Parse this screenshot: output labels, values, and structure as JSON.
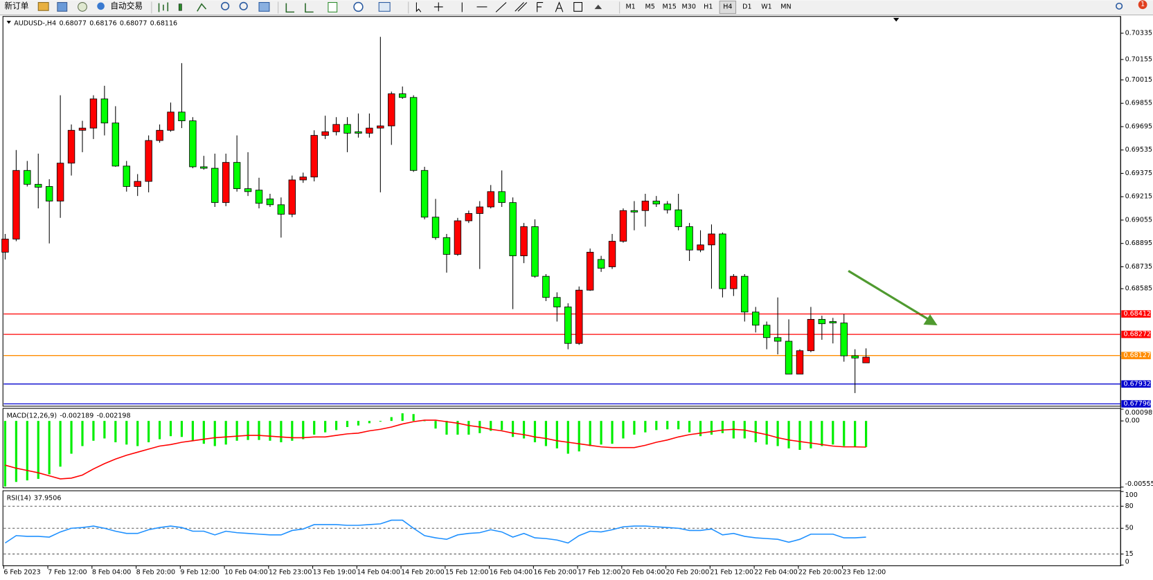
{
  "toolbar": {
    "new_order": "新订单",
    "auto_trading": "自动交易",
    "timeframes": [
      "M1",
      "M5",
      "M15",
      "M30",
      "H1",
      "H4",
      "D1",
      "W1",
      "MN"
    ],
    "active_timeframe": 5,
    "notifications": 1
  },
  "chart_data": [
    {
      "type": "candlestick",
      "symbol": "AUDUSD-,H4",
      "categories": [
        "6 Feb 2023",
        null,
        null,
        null,
        "7 Feb 12:00",
        null,
        null,
        null,
        "8 Feb 04:00",
        null,
        null,
        null,
        "8 Feb 20:00",
        null,
        null,
        null,
        "9 Feb 12:00",
        null,
        null,
        null,
        "10 Feb 04:00",
        null,
        null,
        null,
        "12 Feb 23:00",
        null,
        null,
        null,
        "13 Feb 19:00",
        null,
        null,
        null,
        "14 Feb 04:00",
        null,
        null,
        null,
        "14 Feb 20:00",
        null,
        null,
        null,
        "15 Feb 12:00",
        null,
        null,
        null,
        "16 Feb 04:00",
        null,
        null,
        null,
        "16 Feb 20:00",
        null,
        null,
        null,
        "17 Feb 12:00",
        null,
        null,
        null,
        "20 Feb 04:00",
        null,
        null,
        null,
        "20 Feb 20:00",
        null,
        null,
        null,
        "21 Feb 12:00",
        null,
        null,
        null,
        "22 Feb 04:00",
        null,
        null,
        null,
        "22 Feb 20:00",
        null,
        null,
        null,
        "23 Feb 12:00",
        null,
        null
      ],
      "open": [
        0.68835,
        0.68925,
        0.69395,
        0.693,
        0.69285,
        0.69185,
        0.69445,
        0.6967,
        0.69685,
        0.69885,
        0.6972,
        0.69425,
        0.69285,
        0.6932,
        0.696,
        0.6967,
        0.69795,
        0.69735,
        0.6942,
        0.6941,
        0.69175,
        0.6945,
        0.6927,
        0.6926,
        0.692,
        0.6916,
        0.69095,
        0.6933,
        0.6935,
        0.69635,
        0.6966,
        0.6971,
        0.6966,
        0.6965,
        0.69685,
        0.697,
        0.6992,
        0.69895,
        0.69395,
        0.69075,
        0.68935,
        0.6882,
        0.6905,
        0.691,
        0.69145,
        0.6925,
        0.69175,
        0.6881,
        0.6901,
        0.6867,
        0.68525,
        0.6846,
        0.6821,
        0.68575,
        0.68785,
        0.68735,
        0.6891,
        0.6912,
        0.6912,
        0.69185,
        0.69165,
        0.69125,
        0.6901,
        0.6885,
        0.68885,
        0.6896,
        0.68585,
        0.6867,
        0.68425,
        0.68335,
        0.6825,
        0.68225,
        0.68,
        0.6816,
        0.68375,
        0.6836,
        0.6835,
        0.68125,
        0.68077
      ],
      "high": [
        0.6896,
        0.69535,
        0.6946,
        0.6951,
        0.69335,
        0.6991,
        0.6971,
        0.69735,
        0.6991,
        0.69975,
        0.69835,
        0.6946,
        0.6937,
        0.69635,
        0.6971,
        0.6986,
        0.7013,
        0.6976,
        0.69495,
        0.6951,
        0.6951,
        0.69635,
        0.6952,
        0.69345,
        0.69235,
        0.6921,
        0.6936,
        0.6938,
        0.6967,
        0.6977,
        0.6976,
        0.6976,
        0.69785,
        0.69785,
        0.7031,
        0.69935,
        0.6997,
        0.6991,
        0.6942,
        0.692,
        0.6896,
        0.6907,
        0.6912,
        0.69185,
        0.69295,
        0.69395,
        0.6921,
        0.69035,
        0.6906,
        0.68685,
        0.6856,
        0.68485,
        0.686,
        0.6886,
        0.6881,
        0.6896,
        0.69135,
        0.69185,
        0.69235,
        0.6922,
        0.69185,
        0.69235,
        0.69035,
        0.68985,
        0.69025,
        0.6897,
        0.68685,
        0.68685,
        0.6846,
        0.6836,
        0.68525,
        0.68375,
        0.6817,
        0.6846,
        0.684,
        0.68385,
        0.6841,
        0.6817,
        0.68176
      ],
      "low": [
        0.68785,
        0.6891,
        0.69285,
        0.69135,
        0.68895,
        0.6907,
        0.6936,
        0.6952,
        0.6961,
        0.69635,
        0.6942,
        0.6925,
        0.6922,
        0.69245,
        0.69585,
        0.6966,
        0.69685,
        0.6941,
        0.694,
        0.69145,
        0.6915,
        0.6925,
        0.6922,
        0.69135,
        0.69145,
        0.68935,
        0.69075,
        0.6931,
        0.6932,
        0.6961,
        0.69635,
        0.6952,
        0.6962,
        0.6962,
        0.69245,
        0.6957,
        0.69885,
        0.69385,
        0.6906,
        0.6892,
        0.68695,
        0.6881,
        0.69035,
        0.6872,
        0.69135,
        0.69145,
        0.68445,
        0.6876,
        0.6866,
        0.685,
        0.6836,
        0.6817,
        0.682,
        0.6857,
        0.687,
        0.6872,
        0.689,
        0.68985,
        0.6901,
        0.69145,
        0.691,
        0.68985,
        0.68775,
        0.68835,
        0.68585,
        0.68525,
        0.68535,
        0.6836,
        0.68285,
        0.6817,
        0.68135,
        0.68,
        0.68,
        0.6815,
        0.68235,
        0.6821,
        0.68085,
        0.6787,
        0.68077
      ],
      "close": [
        0.68925,
        0.69395,
        0.693,
        0.6928,
        0.69185,
        0.69445,
        0.6967,
        0.69685,
        0.69885,
        0.6972,
        0.69425,
        0.69285,
        0.6932,
        0.696,
        0.6967,
        0.69795,
        0.69735,
        0.6942,
        0.6941,
        0.69175,
        0.6945,
        0.6927,
        0.6925,
        0.6917,
        0.6916,
        0.69095,
        0.6933,
        0.6935,
        0.69635,
        0.6966,
        0.6971,
        0.6965,
        0.6965,
        0.69685,
        0.697,
        0.6992,
        0.69895,
        0.69395,
        0.69075,
        0.68935,
        0.6882,
        0.6905,
        0.691,
        0.69145,
        0.6925,
        0.69175,
        0.6881,
        0.6901,
        0.6867,
        0.68525,
        0.6846,
        0.6821,
        0.68575,
        0.68835,
        0.68725,
        0.6891,
        0.6912,
        0.6911,
        0.69185,
        0.69165,
        0.69125,
        0.6901,
        0.6885,
        0.68885,
        0.6896,
        0.68585,
        0.6867,
        0.68425,
        0.68335,
        0.6825,
        0.68225,
        0.68,
        0.6816,
        0.68375,
        0.68345,
        0.6835,
        0.68125,
        0.6811,
        0.68116
      ],
      "up_color": "#ff0000",
      "down_color": "#00ff00",
      "ylim": [
        0.6778,
        0.7045
      ],
      "yticks": [
        0.70335,
        0.70155,
        0.70015,
        0.69855,
        0.69695,
        0.69535,
        0.69375,
        0.69215,
        0.69055,
        0.68895,
        0.68735,
        0.68585
      ],
      "grid": false,
      "hlines": [
        {
          "value": 0.68412,
          "color": "#ff0000"
        },
        {
          "value": 0.68272,
          "color": "#ff0000"
        },
        {
          "value": 0.68127,
          "color": "#ff8c00"
        },
        {
          "value": 0.67932,
          "color": "#0000cd"
        },
        {
          "value": 0.67796,
          "color": "#0000cd"
        }
      ]
    },
    {
      "type": "macd",
      "name": "MACD(12,26,9)",
      "values": [
        -0.005504,
        -0.00512,
        -0.004992,
        -0.004864,
        -0.00448,
        -0.00384,
        -0.002752,
        -0.002112,
        -0.001664,
        -0.001472,
        -0.001792,
        -0.001984,
        -0.002112,
        -0.001792,
        -0.001536,
        -0.00128,
        -0.001344,
        -0.001664,
        -0.00192,
        -0.002112,
        -0.001984,
        -0.001664,
        -0.0016,
        -0.0016,
        -0.001664,
        -0.001792,
        -0.001664,
        -0.001536,
        -0.001152,
        -0.00096,
        -0.000768,
        -0.000512,
        -0.000384,
        -0.000192,
        -6.4e-05,
        0.00032,
        0.00064,
        0.000576,
        0,
        -0.00064,
        -0.001152,
        -0.001152,
        -0.001152,
        -0.001024,
        -0.000832,
        -0.000768,
        -0.001344,
        -0.001472,
        -0.001792,
        -0.002112,
        -0.002304,
        -0.002752,
        -0.00256,
        -0.002112,
        -0.001984,
        -0.00192,
        -0.001472,
        -0.001152,
        -0.00096,
        -0.000768,
        -0.000704,
        -0.000704,
        -0.00096,
        -0.00128,
        -0.001152,
        -0.001024,
        -0.001472,
        -0.001472,
        -0.001792,
        -0.001984,
        -0.002112,
        -0.002304,
        -0.002432,
        -0.002304,
        -0.002112,
        -0.001984,
        -0.002112,
        -0.002176,
        -0.002189
      ],
      "signal": [
        -0.003712,
        -0.003968,
        -0.00416,
        -0.004352,
        -0.004608,
        -0.004864,
        -0.0048,
        -0.004544,
        -0.004032,
        -0.003584,
        -0.0032,
        -0.00288,
        -0.002624,
        -0.002368,
        -0.002112,
        -0.001984,
        -0.001792,
        -0.001664,
        -0.001536,
        -0.001408,
        -0.001344,
        -0.00128,
        -0.001216,
        -0.001216,
        -0.00128,
        -0.001344,
        -0.001408,
        -0.001408,
        -0.001344,
        -0.001344,
        -0.001216,
        -0.001088,
        -0.001024,
        -0.000832,
        -0.000704,
        -0.000512,
        -0.000256,
        -6.4e-05,
        6.4e-05,
        6.4e-05,
        -6.4e-05,
        -0.000192,
        -0.000384,
        -0.000512,
        -0.000704,
        -0.000832,
        -0.001024,
        -0.001152,
        -0.001344,
        -0.001472,
        -0.001664,
        -0.001792,
        -0.00192,
        -0.002048,
        -0.002176,
        -0.00224,
        -0.00224,
        -0.00224,
        -0.002048,
        -0.001792,
        -0.0016,
        -0.001344,
        -0.001152,
        -0.001024,
        -0.000896,
        -0.000768,
        -0.000704,
        -0.000768,
        -0.00096,
        -0.001152,
        -0.001408,
        -0.0016,
        -0.001728,
        -0.001856,
        -0.001984,
        -0.002112,
        -0.002176,
        -0.002176,
        -0.002198
      ],
      "color": "#00ee00",
      "signal_color": "#ff0000",
      "ylim": [
        -0.005554,
        0.000989
      ],
      "yticks": [
        0.000989,
        {
          "value": 0,
          "label": "0.00"
        },
        -0.005554
      ],
      "grid": false
    },
    {
      "type": "line",
      "name": "RSI(14)",
      "values": [
        30,
        40,
        39,
        39,
        38,
        45,
        50,
        51,
        53,
        50,
        46,
        43,
        43,
        48,
        51,
        53,
        51,
        46,
        46,
        41,
        46,
        44,
        43,
        42,
        41,
        41,
        47,
        49,
        55,
        55,
        55,
        54,
        54,
        55,
        56,
        61,
        61,
        50,
        40,
        37,
        35,
        41,
        43,
        44,
        48,
        45,
        38,
        43,
        37,
        36,
        34,
        30,
        40,
        46,
        45,
        48,
        52,
        53,
        53,
        52,
        51,
        50,
        47,
        47,
        49,
        41,
        43,
        39,
        37,
        36,
        35,
        31,
        35,
        42,
        42,
        42,
        37,
        37,
        37.9506
      ],
      "color": "#1e90ff",
      "ylim": [
        0,
        100
      ],
      "yticks": [
        100,
        80,
        50,
        15,
        0
      ],
      "grid": "dashed"
    }
  ]
}
